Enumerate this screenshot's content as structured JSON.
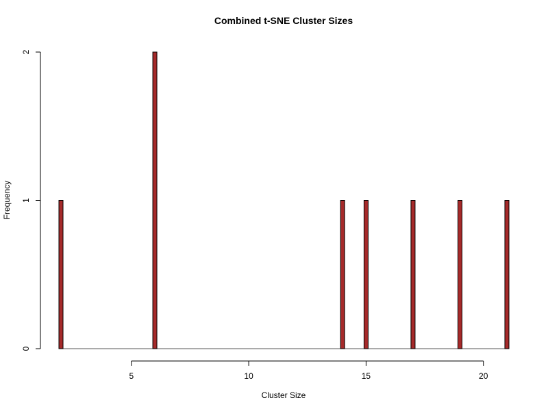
{
  "chart_data": {
    "type": "bar",
    "title": "Combined t-SNE Cluster Sizes",
    "xlabel": "Cluster Size",
    "ylabel": "Frequency",
    "x": [
      2,
      6,
      14,
      15,
      17,
      19,
      21
    ],
    "values": [
      1,
      2,
      1,
      1,
      1,
      1,
      1
    ],
    "xlim": [
      2,
      21
    ],
    "ylim": [
      0,
      2
    ],
    "x_ticks": [
      5,
      10,
      15,
      20
    ],
    "y_ticks": [
      0,
      1,
      2
    ],
    "bar_color": "#A52A2A",
    "grid": false,
    "legend": "none"
  }
}
